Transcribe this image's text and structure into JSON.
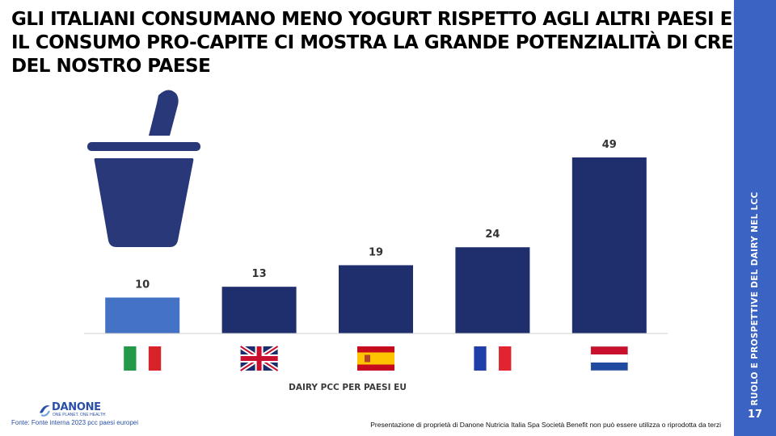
{
  "title_lines": [
    "GLI ITALIANI CONSUMANO MENO YOGURT RISPETTO AGLI ALTRI PAESI EU,",
    "IL CONSUMO PRO-CAPITE CI MOSTRA LA GRANDE POTENZIALITÀ DI CRESCITA",
    "DEL NOSTRO PAESE"
  ],
  "sidebar": {
    "label": "RUOLO E PROSPETTIVE DEL DAIRY NEL LCC",
    "page_number": "17"
  },
  "chart_data": {
    "type": "bar",
    "categories": [
      "Italia",
      "Regno Unito",
      "Spagna",
      "Francia",
      "Paesi Bassi"
    ],
    "values": [
      10,
      13,
      19,
      24,
      49
    ],
    "category_icons": [
      "flag-italy",
      "flag-uk",
      "flag-spain",
      "flag-france",
      "flag-netherlands"
    ],
    "bar_colors": [
      "#4472c4",
      "#1f2f6e",
      "#1f2f6e",
      "#1f2f6e",
      "#1f2f6e"
    ],
    "xlabel": "DAIRY PCC PER PAESI EU",
    "ylim": [
      0,
      50
    ],
    "grid": false,
    "decorative_icon": "yogurt-cup-icon"
  },
  "footer": {
    "logo_text": "DANONE",
    "logo_tagline": "ONE PLANET. ONE HEALTH",
    "source": "Fonte: Fonte interna 2023 pcc paesi europei",
    "disclaimer": "Presentazione di proprietà di Danone Nutricia Italia Spa Società Benefit non può essere utilizza o riprodotta da terzi"
  }
}
